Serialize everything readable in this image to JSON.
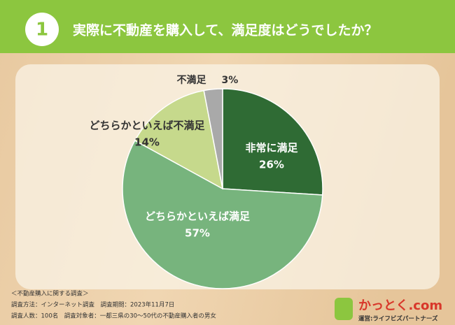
{
  "badge": "1",
  "chart_data": {
    "type": "pie",
    "title": "実際に不動産を購入して、満足度はどうでしたか？",
    "categories": [
      "非常に満足",
      "どちらかといえば満足",
      "どちらかといえば不満足",
      "不満足"
    ],
    "values": [
      26,
      57,
      14,
      3
    ],
    "value_labels": [
      "26%",
      "57%",
      "14%",
      "3%"
    ],
    "colors": [
      "#2f6b34",
      "#77b47d",
      "#c6d98c",
      "#a9a9a9"
    ]
  },
  "footer": [
    "＜不動産購入に関する調査＞",
    "調査方法：インターネット調査　調査期間：2023年11月7日",
    "調査人数：100名　調査対象者：一都三県の30〜50代の不動産購入者の男女"
  ],
  "logo": {
    "name": "かっとく.com",
    "sub": "運営:ライフビズパートナーズ"
  }
}
